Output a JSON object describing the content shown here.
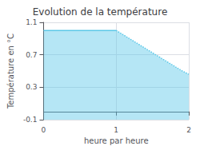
{
  "chart_data": {
    "type": "line",
    "title": "Evolution de la température",
    "xlabel": "heure par heure",
    "ylabel": "Température en °C",
    "xlim": [
      0,
      2
    ],
    "ylim": [
      -0.1,
      1.1
    ],
    "xticks": [
      0,
      1,
      2
    ],
    "yticks": [
      -0.1,
      0.3,
      0.7,
      1.1
    ],
    "grid": true,
    "series": [
      {
        "x": [
          0,
          1
        ],
        "values": [
          1.0,
          1.0
        ],
        "color": "#5bc8e8",
        "line_style": "solid"
      },
      {
        "x": [
          1.0,
          1.1,
          1.2,
          1.3,
          1.4,
          1.5,
          1.6,
          1.7,
          1.8,
          1.9,
          2.0
        ],
        "values": [
          1.0,
          0.945,
          0.89,
          0.835,
          0.78,
          0.725,
          0.67,
          0.615,
          0.56,
          0.505,
          0.46
        ],
        "color": "#5bc8e8",
        "line_style": "dotted"
      }
    ]
  }
}
